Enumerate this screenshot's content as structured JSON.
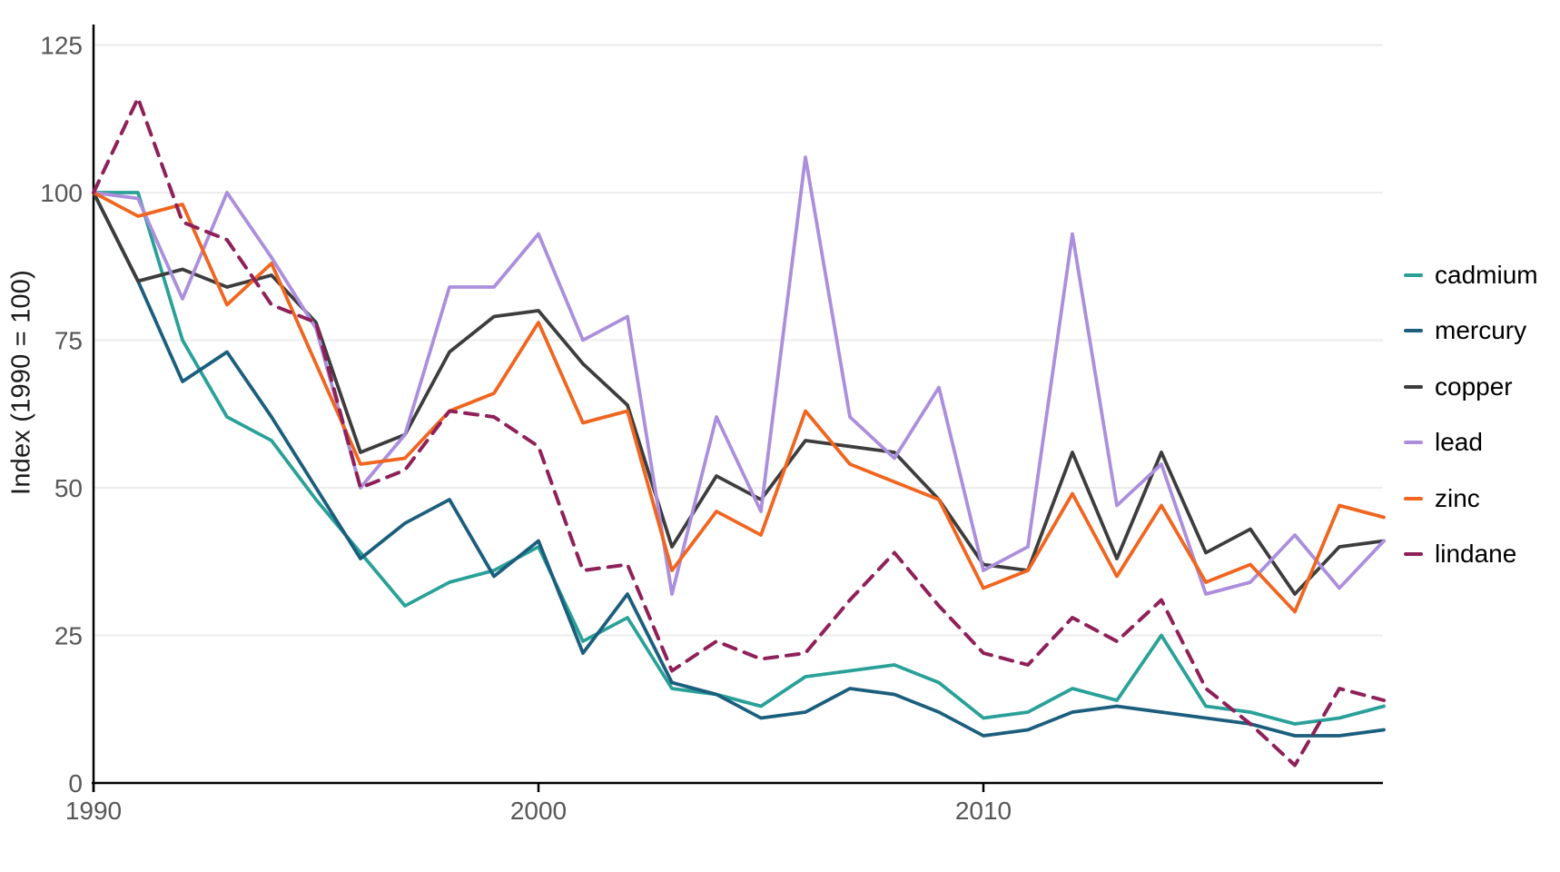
{
  "chart_data": {
    "type": "line",
    "title": "",
    "ylabel": "Index (1990 = 100)",
    "xlabel": "",
    "x": [
      1990,
      1991,
      1992,
      1993,
      1994,
      1995,
      1996,
      1997,
      1998,
      1999,
      2000,
      2001,
      2002,
      2003,
      2004,
      2005,
      2006,
      2007,
      2008,
      2009,
      2010,
      2011,
      2012,
      2013,
      2014,
      2015,
      2016,
      2017,
      2018,
      2019
    ],
    "xticks": [
      1990,
      2000,
      2010
    ],
    "yticks": [
      0,
      25,
      50,
      75,
      100,
      125
    ],
    "xlim": [
      1990,
      2019
    ],
    "ylim": [
      0,
      129
    ],
    "grid": "horizontal-only",
    "legend_position": "right",
    "series": [
      {
        "name": "cadmium",
        "color": "#2aa198",
        "dashed": false,
        "values": [
          100,
          100,
          75,
          62,
          58,
          48,
          39,
          30,
          34,
          36,
          40,
          24,
          28,
          16,
          15,
          13,
          18,
          19,
          20,
          17,
          11,
          12,
          16,
          14,
          25,
          13,
          12,
          10,
          11,
          13
        ]
      },
      {
        "name": "mercury",
        "color": "#1b5e7d",
        "dashed": false,
        "values": [
          100,
          85,
          68,
          73,
          62,
          50,
          38,
          44,
          48,
          35,
          41,
          22,
          32,
          17,
          15,
          11,
          12,
          16,
          15,
          12,
          8,
          9,
          12,
          13,
          12,
          11,
          10,
          8,
          8,
          9
        ]
      },
      {
        "name": "copper",
        "color": "#3d3d3d",
        "dashed": false,
        "values": [
          100,
          85,
          87,
          84,
          86,
          78,
          56,
          59,
          73,
          79,
          80,
          71,
          64,
          40,
          52,
          48,
          58,
          57,
          56,
          48,
          37,
          36,
          56,
          38,
          56,
          39,
          43,
          32,
          40,
          41
        ]
      },
      {
        "name": "lead",
        "color": "#ab8fdc",
        "dashed": false,
        "values": [
          100,
          99,
          82,
          100,
          89,
          77,
          50,
          59,
          84,
          84,
          93,
          75,
          79,
          32,
          62,
          46,
          106,
          62,
          55,
          67,
          36,
          40,
          93,
          47,
          54,
          32,
          34,
          42,
          33,
          41
        ]
      },
      {
        "name": "zinc",
        "color": "#f0651f",
        "dashed": false,
        "values": [
          100,
          96,
          98,
          81,
          88,
          71,
          54,
          55,
          63,
          66,
          78,
          61,
          63,
          36,
          46,
          42,
          63,
          54,
          51,
          48,
          33,
          36,
          49,
          35,
          47,
          34,
          37,
          29,
          47,
          45
        ]
      },
      {
        "name": "lindane",
        "color": "#8f2159",
        "dashed": true,
        "values": [
          100,
          116,
          95,
          92,
          81,
          78,
          50,
          53,
          63,
          62,
          57,
          36,
          37,
          19,
          24,
          21,
          22,
          31,
          39,
          30,
          22,
          20,
          28,
          24,
          31,
          16,
          10,
          3,
          16,
          14
        ]
      }
    ],
    "colors": {
      "grid": "#ececec",
      "axis": "#000000",
      "tick_label": "#575757",
      "background": "#ffffff"
    }
  }
}
